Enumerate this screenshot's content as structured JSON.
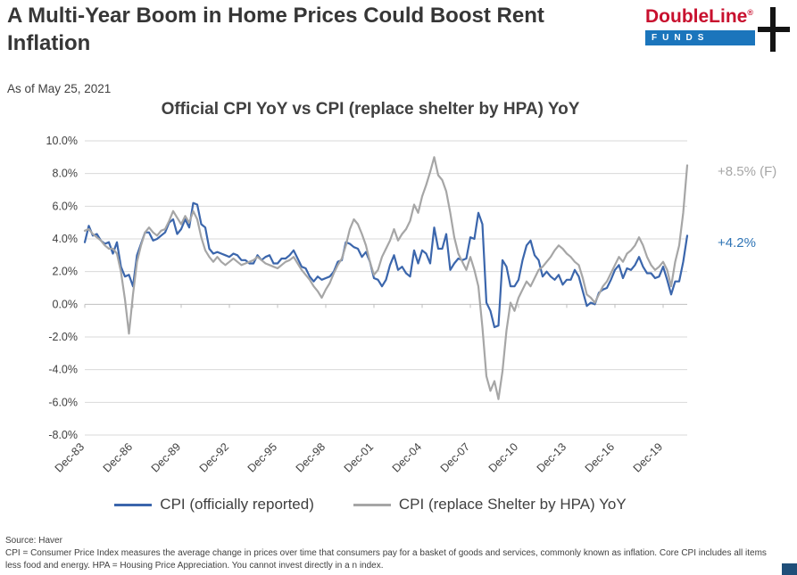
{
  "header": {
    "title": "A Multi-Year Boom in Home Prices Could Boost Rent Inflation",
    "as_of": "As of May 25, 2021",
    "logo": {
      "brand": "DoubleLine",
      "reg": "®",
      "funds": "FUNDS"
    }
  },
  "annotations": {
    "hpa_forecast": "+8.5% (F)",
    "cpi_current": "+4.2%"
  },
  "legend": [
    {
      "label": "CPI (officially reported)",
      "color": "#3b66ac"
    },
    {
      "label": "CPI (replace Shelter by HPA) YoY",
      "color": "#a6a6a6"
    }
  ],
  "footer": {
    "source": "Source: Haver",
    "disclaimer": "CPI = Consumer Price Index measures the average change in prices over time that consumers pay for a basket of goods and services, commonly known as inflation. Core CPI includes all items less food and energy. HPA = Housing Price Appreciation. You cannot invest directly in a n index."
  },
  "chart_data": {
    "type": "line",
    "title": "Official CPI YoY vs CPI (replace shelter by HPA) YoY",
    "xlabel": "",
    "ylabel": "",
    "ylim": [
      -8,
      10
    ],
    "yticks": [
      10,
      8,
      6,
      4,
      2,
      0,
      -2,
      -4,
      -6,
      -8
    ],
    "grid": true,
    "legend_position": "bottom",
    "frequency": "quarterly",
    "x_start": "Dec-83",
    "x_end": "May-21",
    "x_tick_labels": [
      "Dec-83",
      "Dec-86",
      "Dec-89",
      "Dec-92",
      "Dec-95",
      "Dec-98",
      "Dec-01",
      "Dec-04",
      "Dec-07",
      "Dec-10",
      "Dec-13",
      "Dec-16",
      "Dec-19"
    ],
    "x_tick_indices": [
      0,
      12,
      24,
      36,
      48,
      60,
      72,
      84,
      96,
      108,
      120,
      132,
      144
    ],
    "end_labels": {
      "series_0": "+4.2%",
      "series_1": "+8.5% (F)"
    },
    "series": [
      {
        "name": "CPI (officially reported)",
        "color": "#3b66ac",
        "values": [
          3.8,
          4.8,
          4.2,
          4.3,
          3.9,
          3.7,
          3.8,
          3.1,
          3.8,
          2.3,
          1.7,
          1.8,
          1.1,
          3.0,
          3.7,
          4.4,
          4.4,
          3.9,
          4.0,
          4.2,
          4.4,
          5.0,
          5.2,
          4.3,
          4.6,
          5.2,
          4.7,
          6.2,
          6.1,
          4.9,
          4.7,
          3.4,
          3.1,
          3.2,
          3.1,
          3.0,
          2.9,
          3.1,
          3.0,
          2.7,
          2.7,
          2.5,
          2.5,
          3.0,
          2.7,
          2.9,
          3.0,
          2.5,
          2.5,
          2.8,
          2.8,
          3.0,
          3.3,
          2.8,
          2.3,
          2.2,
          1.7,
          1.4,
          1.7,
          1.5,
          1.6,
          1.7,
          2.0,
          2.6,
          2.7,
          3.8,
          3.7,
          3.5,
          3.4,
          2.9,
          3.2,
          2.6,
          1.6,
          1.5,
          1.1,
          1.5,
          2.4,
          3.0,
          2.1,
          2.3,
          1.9,
          1.7,
          3.3,
          2.5,
          3.3,
          3.1,
          2.5,
          4.7,
          3.4,
          3.4,
          4.3,
          2.1,
          2.5,
          2.8,
          2.7,
          2.8,
          4.1,
          4.0,
          5.6,
          4.9,
          0.1,
          -0.4,
          -1.4,
          -1.3,
          2.7,
          2.3,
          1.1,
          1.1,
          1.5,
          2.7,
          3.6,
          3.9,
          3.0,
          2.7,
          1.7,
          2.0,
          1.7,
          1.5,
          1.8,
          1.2,
          1.5,
          1.5,
          2.1,
          1.7,
          0.8,
          -0.1,
          0.1,
          0.0,
          0.7,
          0.9,
          1.0,
          1.5,
          2.1,
          2.4,
          1.6,
          2.2,
          2.1,
          2.4,
          2.9,
          2.3,
          1.9,
          1.9,
          1.6,
          1.7,
          2.3,
          1.5,
          0.6,
          1.4,
          1.4,
          2.6,
          4.2
        ]
      },
      {
        "name": "CPI (replace Shelter by HPA) YoY",
        "color": "#a6a6a6",
        "values": [
          4.5,
          4.6,
          4.3,
          4.1,
          3.9,
          3.6,
          3.4,
          3.4,
          3.1,
          2.0,
          0.3,
          -1.8,
          0.6,
          2.6,
          3.6,
          4.4,
          4.7,
          4.4,
          4.2,
          4.5,
          4.6,
          5.1,
          5.7,
          5.3,
          4.9,
          5.4,
          5.0,
          5.7,
          5.2,
          4.1,
          3.3,
          2.9,
          2.6,
          2.9,
          2.6,
          2.4,
          2.6,
          2.8,
          2.6,
          2.4,
          2.5,
          2.6,
          2.7,
          2.9,
          2.7,
          2.5,
          2.4,
          2.3,
          2.2,
          2.4,
          2.6,
          2.7,
          2.9,
          2.5,
          2.1,
          1.8,
          1.5,
          1.1,
          0.8,
          0.4,
          0.9,
          1.3,
          1.9,
          2.4,
          2.8,
          3.6,
          4.6,
          5.2,
          4.9,
          4.3,
          3.6,
          2.6,
          1.8,
          2.1,
          2.9,
          3.4,
          3.9,
          4.6,
          3.9,
          4.3,
          4.6,
          5.1,
          6.1,
          5.6,
          6.6,
          7.3,
          8.1,
          9.0,
          7.9,
          7.6,
          6.9,
          5.6,
          4.1,
          3.1,
          2.6,
          2.1,
          2.9,
          2.1,
          1.1,
          -1.4,
          -4.4,
          -5.3,
          -4.7,
          -5.8,
          -4.1,
          -1.6,
          0.1,
          -0.4,
          0.4,
          0.9,
          1.4,
          1.1,
          1.6,
          2.1,
          2.3,
          2.6,
          2.9,
          3.3,
          3.6,
          3.4,
          3.1,
          2.9,
          2.6,
          2.4,
          1.6,
          0.6,
          0.4,
          0.1,
          0.6,
          1.1,
          1.4,
          1.9,
          2.4,
          2.9,
          2.6,
          3.1,
          3.3,
          3.6,
          4.1,
          3.6,
          2.9,
          2.4,
          2.1,
          2.3,
          2.6,
          2.1,
          1.1,
          2.6,
          3.6,
          5.6,
          8.5
        ]
      }
    ]
  }
}
